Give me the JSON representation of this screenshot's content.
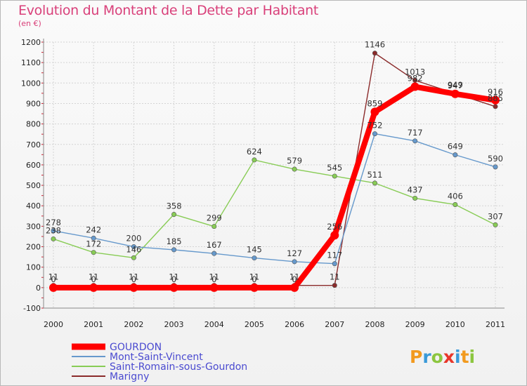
{
  "title": "Evolution du Montant de la Dette par Habitant",
  "subtitle": "(en €)",
  "brand": "Proxiti",
  "chart_data": {
    "type": "line",
    "title": "Evolution du Montant de la Dette par Habitant",
    "subtitle": "(en €)",
    "x": [
      "2000",
      "2001",
      "2002",
      "2003",
      "2004",
      "2005",
      "2006",
      "2007",
      "2008",
      "2009",
      "2010",
      "2011"
    ],
    "ylim": [
      -100,
      1200
    ],
    "yticks": [
      -100,
      0,
      100,
      200,
      300,
      400,
      500,
      600,
      700,
      800,
      900,
      1000,
      1100,
      1200
    ],
    "grid": true,
    "legend": "bottom-left",
    "series": [
      {
        "name": "GOURDON",
        "color": "#ff0000",
        "values": [
          0,
          0,
          0,
          0,
          0,
          0,
          0,
          256,
          859,
          982,
          947,
          916
        ]
      },
      {
        "name": "Mont-Saint-Vincent",
        "color": "#6699cc",
        "values": [
          278,
          242,
          200,
          185,
          167,
          145,
          127,
          117,
          752,
          717,
          649,
          590
        ]
      },
      {
        "name": "Saint-Romain-sous-Gourdon",
        "color": "#88cc55",
        "values": [
          238,
          172,
          146,
          358,
          299,
          624,
          579,
          545,
          511,
          437,
          406,
          307
        ]
      },
      {
        "name": "Marigny",
        "color": "#8b2b2b",
        "values": [
          11,
          11,
          11,
          11,
          11,
          11,
          11,
          11,
          1146,
          1013,
          949,
          885
        ]
      }
    ]
  }
}
